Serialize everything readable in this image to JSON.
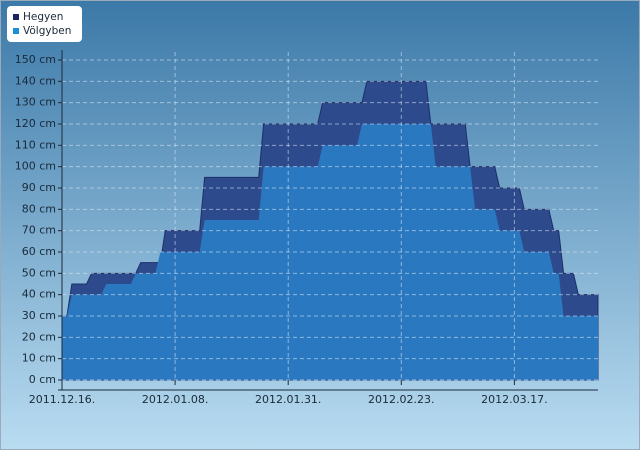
{
  "chart_data": {
    "type": "area",
    "series": [
      {
        "name": "Hegyen",
        "color": "#2d4a8c",
        "legend_color": "#1a2460",
        "x": [
          "2011.12.16.",
          "2011.12.17.",
          "2011.12.18.",
          "2011.12.21.",
          "2011.12.22.",
          "2011.12.31.",
          "2012.01.01.",
          "2012.01.05.",
          "2012.01.06.",
          "2012.01.13.",
          "2012.01.14.",
          "2012.01.25.",
          "2012.01.26.",
          "2012.02.06.",
          "2012.02.07.",
          "2012.02.15.",
          "2012.02.16.",
          "2012.02.28.",
          "2012.02.29.",
          "2012.03.07.",
          "2012.03.08.",
          "2012.03.13.",
          "2012.03.14.",
          "2012.03.18.",
          "2012.03.19.",
          "2012.03.24.",
          "2012.03.25.",
          "2012.03.26.",
          "2012.03.27.",
          "2012.03.29.",
          "2012.03.30.",
          "2012.04.03."
        ],
        "values": [
          30,
          30,
          45,
          45,
          50,
          50,
          55,
          55,
          70,
          70,
          95,
          95,
          120,
          120,
          130,
          130,
          140,
          140,
          120,
          120,
          100,
          100,
          90,
          90,
          80,
          80,
          70,
          70,
          50,
          50,
          40,
          40
        ]
      },
      {
        "name": "Völgyben",
        "color": "#2a78c0",
        "legend_color": "#1e8fd6",
        "x": [
          "2011.12.16.",
          "2011.12.17.",
          "2011.12.18.",
          "2011.12.24.",
          "2011.12.25.",
          "2011.12.30.",
          "2011.12.31.",
          "2012.01.04.",
          "2012.01.05.",
          "2012.01.13.",
          "2012.01.14.",
          "2012.01.25.",
          "2012.01.26.",
          "2012.02.06.",
          "2012.02.07.",
          "2012.02.14.",
          "2012.02.15.",
          "2012.02.29.",
          "2012.03.01.",
          "2012.03.08.",
          "2012.03.09.",
          "2012.03.13.",
          "2012.03.14.",
          "2012.03.18.",
          "2012.03.19.",
          "2012.03.24.",
          "2012.03.25.",
          "2012.03.26.",
          "2012.03.27.",
          "2012.04.03."
        ],
        "values": [
          30,
          30,
          40,
          40,
          45,
          45,
          50,
          50,
          60,
          60,
          75,
          75,
          100,
          100,
          110,
          110,
          120,
          120,
          100,
          100,
          80,
          80,
          70,
          70,
          60,
          60,
          50,
          50,
          30,
          30
        ]
      }
    ],
    "xlim": [
      "2011.12.16.",
      "2012.04.03."
    ],
    "xticks": [
      "2011.12.16.",
      "2012.01.08.",
      "2012.01.31.",
      "2012.02.23.",
      "2012.03.17."
    ],
    "ylim": [
      0,
      150
    ],
    "yticks": [
      {
        "value": 0,
        "label": "0 cm"
      },
      {
        "value": 10,
        "label": "10 cm"
      },
      {
        "value": 20,
        "label": "20 cm"
      },
      {
        "value": 30,
        "label": "30 cm"
      },
      {
        "value": 40,
        "label": "40 cm"
      },
      {
        "value": 50,
        "label": "50 cm"
      },
      {
        "value": 60,
        "label": "60 cm"
      },
      {
        "value": 70,
        "label": "70 cm"
      },
      {
        "value": 80,
        "label": "80 cm"
      },
      {
        "value": 90,
        "label": "90 cm"
      },
      {
        "value": 100,
        "label": "100 cm"
      },
      {
        "value": 110,
        "label": "110 cm"
      },
      {
        "value": 120,
        "label": "120 cm"
      },
      {
        "value": 130,
        "label": "130 cm"
      },
      {
        "value": 140,
        "label": "140 cm"
      },
      {
        "value": 150,
        "label": "150 cm"
      }
    ],
    "grid": true,
    "legend": "top-left"
  }
}
